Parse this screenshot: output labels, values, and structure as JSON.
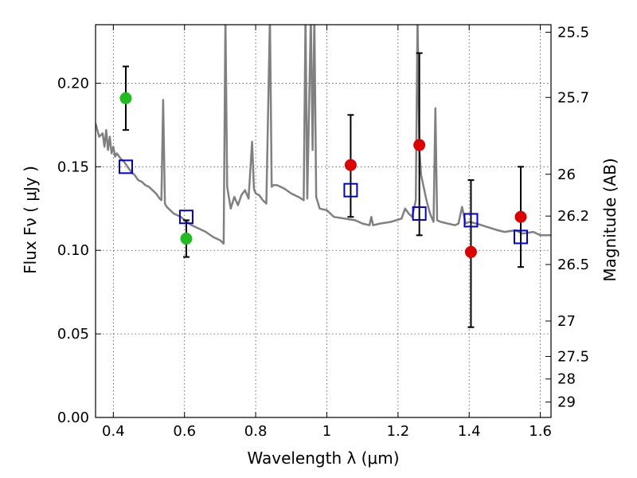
{
  "chart_data": {
    "type": "scatter",
    "xlabel": "Wavelength  λ (μm)",
    "ylabel": "Flux  Fν  ( μJy )",
    "ylabel_right": "Magnitude (AB)",
    "xlim": [
      0.35,
      1.63
    ],
    "ylim": [
      0,
      0.235
    ],
    "x_ticks": [
      {
        "value": 0.4,
        "label": "0.4"
      },
      {
        "value": 0.6,
        "label": "0.6"
      },
      {
        "value": 0.8,
        "label": "0.8"
      },
      {
        "value": 1.0,
        "label": "1"
      },
      {
        "value": 1.2,
        "label": "1.2"
      },
      {
        "value": 1.4,
        "label": "1.4"
      },
      {
        "value": 1.6,
        "label": "1.6"
      }
    ],
    "y_ticks": [
      {
        "value": 0.0,
        "label": "0.00"
      },
      {
        "value": 0.05,
        "label": "0.05"
      },
      {
        "value": 0.1,
        "label": "0.10"
      },
      {
        "value": 0.15,
        "label": "0.15"
      },
      {
        "value": 0.2,
        "label": "0.20"
      }
    ],
    "right_ticks": [
      {
        "flux": 0.2305,
        "label": "25.5"
      },
      {
        "flux": 0.1915,
        "label": "25.7"
      },
      {
        "flux": 0.1455,
        "label": "26"
      },
      {
        "flux": 0.1205,
        "label": "26.2"
      },
      {
        "flux": 0.0915,
        "label": "26.5"
      },
      {
        "flux": 0.0577,
        "label": "27"
      },
      {
        "flux": 0.0365,
        "label": "27.5"
      },
      {
        "flux": 0.023,
        "label": "28"
      },
      {
        "flux": 0.0092,
        "label": "29"
      }
    ],
    "grid": true,
    "colors": {
      "model": "#808080",
      "green": "#22bb22",
      "red": "#dd0000",
      "square": "#0000cc",
      "errorbar": "#000000"
    },
    "model_spectrum": {
      "x": [
        0.35,
        0.36,
        0.37,
        0.375,
        0.38,
        0.385,
        0.39,
        0.395,
        0.4,
        0.405,
        0.41,
        0.42,
        0.43,
        0.44,
        0.45,
        0.46,
        0.47,
        0.48,
        0.49,
        0.5,
        0.51,
        0.52,
        0.53,
        0.535,
        0.54,
        0.545,
        0.55,
        0.56,
        0.57,
        0.58,
        0.59,
        0.6,
        0.62,
        0.64,
        0.66,
        0.68,
        0.7,
        0.71,
        0.715,
        0.72,
        0.73,
        0.74,
        0.75,
        0.76,
        0.77,
        0.78,
        0.79,
        0.795,
        0.8,
        0.81,
        0.82,
        0.83,
        0.84,
        0.845,
        0.85,
        0.86,
        0.87,
        0.88,
        0.9,
        0.92,
        0.935,
        0.94,
        0.945,
        0.955,
        0.96,
        0.965,
        0.97,
        0.98,
        1.0,
        1.02,
        1.05,
        1.08,
        1.1,
        1.12,
        1.125,
        1.13,
        1.15,
        1.18,
        1.21,
        1.22,
        1.23,
        1.24,
        1.25,
        1.255,
        1.26,
        1.265,
        1.27,
        1.28,
        1.29,
        1.3,
        1.305,
        1.31,
        1.32,
        1.34,
        1.36,
        1.37,
        1.38,
        1.39,
        1.4,
        1.42,
        1.45,
        1.48,
        1.5,
        1.53,
        1.55,
        1.58,
        1.6,
        1.63
      ],
      "y": [
        0.176,
        0.168,
        0.17,
        0.162,
        0.172,
        0.16,
        0.168,
        0.158,
        0.162,
        0.156,
        0.158,
        0.155,
        0.153,
        0.15,
        0.147,
        0.145,
        0.142,
        0.141,
        0.139,
        0.138,
        0.136,
        0.134,
        0.131,
        0.13,
        0.19,
        0.128,
        0.126,
        0.124,
        0.122,
        0.121,
        0.12,
        0.118,
        0.115,
        0.113,
        0.111,
        0.108,
        0.106,
        0.104,
        0.24,
        0.138,
        0.125,
        0.132,
        0.127,
        0.133,
        0.136,
        0.131,
        0.165,
        0.137,
        0.134,
        0.133,
        0.13,
        0.128,
        0.24,
        0.138,
        0.139,
        0.139,
        0.138,
        0.137,
        0.134,
        0.132,
        0.13,
        0.24,
        0.131,
        0.24,
        0.16,
        0.24,
        0.132,
        0.125,
        0.124,
        0.12,
        0.119,
        0.118,
        0.116,
        0.115,
        0.12,
        0.115,
        0.116,
        0.117,
        0.119,
        0.125,
        0.122,
        0.12,
        0.13,
        0.24,
        0.16,
        0.145,
        0.14,
        0.13,
        0.122,
        0.117,
        0.185,
        0.118,
        0.117,
        0.116,
        0.115,
        0.116,
        0.126,
        0.116,
        0.117,
        0.116,
        0.114,
        0.112,
        0.111,
        0.112,
        0.11,
        0.111,
        0.109,
        0.109
      ]
    },
    "green_points": [
      {
        "x": 0.435,
        "y": 0.191,
        "err_low": 0.172,
        "err_high": 0.21
      },
      {
        "x": 0.605,
        "y": 0.107,
        "err_low": 0.096,
        "err_high": 0.118
      }
    ],
    "red_points": [
      {
        "x": 1.067,
        "y": 0.151,
        "err_low": 0.12,
        "err_high": 0.181
      },
      {
        "x": 1.26,
        "y": 0.163,
        "err_low": 0.109,
        "err_high": 0.218
      },
      {
        "x": 1.405,
        "y": 0.099,
        "err_low": 0.054,
        "err_high": 0.142
      },
      {
        "x": 1.545,
        "y": 0.12,
        "err_low": 0.09,
        "err_high": 0.15
      }
    ],
    "model_squares": [
      {
        "x": 0.435,
        "y": 0.15
      },
      {
        "x": 0.605,
        "y": 0.12
      },
      {
        "x": 1.067,
        "y": 0.136
      },
      {
        "x": 1.26,
        "y": 0.122
      },
      {
        "x": 1.405,
        "y": 0.118
      },
      {
        "x": 1.545,
        "y": 0.108
      }
    ]
  }
}
